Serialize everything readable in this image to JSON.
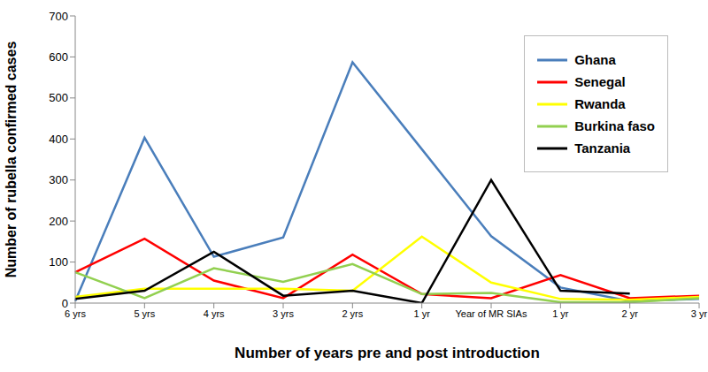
{
  "chart_data": {
    "type": "line",
    "x_label": "Number of years pre and post introduction",
    "y_label": "Number of rubella confirmed cases",
    "categories": [
      "6 yrs",
      "5 yrs",
      "4 yrs",
      "3 yrs",
      "2 yrs",
      "1 yr",
      "Year of MR SIAs",
      "1 yr",
      "2 yr",
      "3 yr"
    ],
    "series": [
      {
        "name": "Ghana",
        "color": "#4a7ebb",
        "values": [
          5,
          403,
          113,
          160,
          587,
          375,
          163,
          38,
          5,
          10
        ]
      },
      {
        "name": "Senegal",
        "color": "#ff0000",
        "values": [
          75,
          157,
          55,
          12,
          118,
          22,
          12,
          68,
          12,
          18
        ]
      },
      {
        "name": "Rwanda",
        "color": "#ffff00",
        "values": [
          15,
          35,
          35,
          35,
          30,
          162,
          50,
          10,
          8,
          15
        ]
      },
      {
        "name": "Burkina faso",
        "color": "#92d050",
        "values": [
          75,
          12,
          85,
          52,
          95,
          22,
          25,
          2,
          2,
          12
        ]
      },
      {
        "name": "Tanzania",
        "color": "#000000",
        "values": [
          10,
          30,
          125,
          18,
          30,
          0,
          300,
          30,
          23,
          null
        ]
      }
    ],
    "ylim": [
      0,
      700
    ],
    "yticks": [
      0,
      100,
      200,
      300,
      400,
      500,
      600,
      700
    ],
    "grid": false,
    "legend": "upper right"
  }
}
